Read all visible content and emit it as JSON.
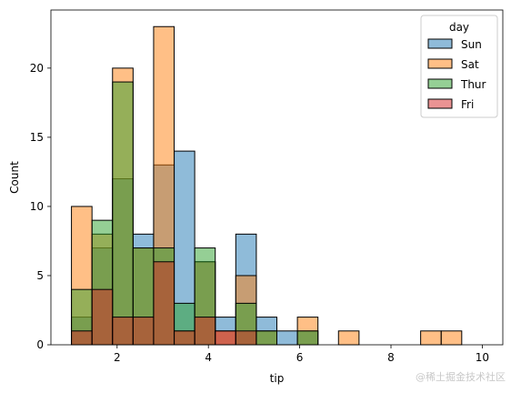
{
  "chart_data": {
    "type": "bar",
    "subtype": "overlapping-histogram",
    "xlabel": "tip",
    "ylabel": "Count",
    "xlim": [
      0.55,
      10.45
    ],
    "ylim": [
      0,
      24.2
    ],
    "xticks": [
      2,
      4,
      6,
      8,
      10
    ],
    "yticks": [
      0,
      5,
      10,
      15,
      20
    ],
    "bin_edges": [
      1.0,
      1.45,
      1.9,
      2.35,
      2.8,
      3.25,
      3.7,
      4.15,
      4.6,
      5.05,
      5.5,
      5.95,
      6.4,
      6.85,
      7.3,
      7.75,
      8.2,
      8.65,
      9.1,
      9.55,
      10.0
    ],
    "legend": {
      "title": "day",
      "placement": "upper right"
    },
    "series": [
      {
        "name": "Sun",
        "color": "#1f77b4",
        "values": [
          2,
          7,
          12,
          8,
          13,
          14,
          6,
          2,
          8,
          2,
          1,
          1,
          0,
          0,
          0,
          0,
          0,
          0,
          0,
          0
        ]
      },
      {
        "name": "Sat",
        "color": "#ff7f0e",
        "values": [
          10,
          8,
          20,
          7,
          23,
          1,
          6,
          1,
          5,
          1,
          0,
          2,
          0,
          1,
          0,
          0,
          0,
          1,
          1,
          0
        ]
      },
      {
        "name": "Thur",
        "color": "#2ca02c",
        "values": [
          4,
          9,
          19,
          7,
          7,
          3,
          7,
          0,
          3,
          1,
          0,
          1,
          0,
          0,
          0,
          0,
          0,
          0,
          0,
          0
        ]
      },
      {
        "name": "Fri",
        "color": "#d62728",
        "values": [
          1,
          4,
          2,
          2,
          6,
          1,
          2,
          1,
          1,
          0,
          0,
          0,
          0,
          0,
          0,
          0,
          0,
          0,
          0,
          0
        ]
      }
    ]
  },
  "watermark": "@稀土掘金技术社区"
}
